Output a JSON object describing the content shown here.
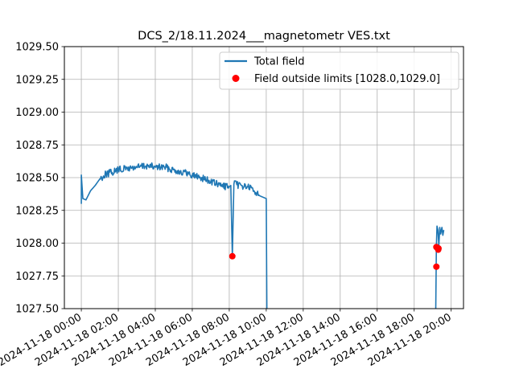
{
  "chart_data": {
    "type": "line",
    "title": "DCS_2/18.11.2024___magnetometr VES.txt",
    "xlabel": "",
    "ylabel": "",
    "xlim": [
      "2024-11-17 23:05",
      "2024-11-18 20:40"
    ],
    "ylim": [
      1027.5,
      1029.5
    ],
    "grid": true,
    "legend_position": "upper-right",
    "x_ticks": [
      "2024-11-18 00:00",
      "2024-11-18 02:00",
      "2024-11-18 04:00",
      "2024-11-18 06:00",
      "2024-11-18 08:00",
      "2024-11-18 10:00",
      "2024-11-18 12:00",
      "2024-11-18 14:00",
      "2024-11-18 16:00",
      "2024-11-18 18:00",
      "2024-11-18 20:00"
    ],
    "y_ticks": [
      "1027.50",
      "1027.75",
      "1028.00",
      "1028.25",
      "1028.50",
      "1028.75",
      "1029.00",
      "1029.25",
      "1029.50"
    ],
    "series": [
      {
        "name": "Total field",
        "color": "#1f77b4",
        "points": [
          [
            "2024-11-18 00:00",
            1028.3
          ],
          [
            "2024-11-18 00:00",
            1028.52
          ],
          [
            "2024-11-18 00:05",
            1028.34
          ],
          [
            "2024-11-18 00:15",
            1028.33
          ],
          [
            "2024-11-18 00:30",
            1028.4
          ],
          [
            "2024-11-18 00:45",
            1028.44
          ],
          [
            "2024-11-18 01:00",
            1028.49
          ],
          [
            "2024-11-18 01:20",
            1028.53
          ],
          [
            "2024-11-18 01:40",
            1028.54
          ],
          [
            "2024-11-18 02:00",
            1028.56
          ],
          [
            "2024-11-18 02:30",
            1028.57
          ],
          [
            "2024-11-18 03:00",
            1028.58
          ],
          [
            "2024-11-18 03:30",
            1028.59
          ],
          [
            "2024-11-18 04:00",
            1028.58
          ],
          [
            "2024-11-18 04:30",
            1028.58
          ],
          [
            "2024-11-18 05:00",
            1028.56
          ],
          [
            "2024-11-18 05:30",
            1028.54
          ],
          [
            "2024-11-18 06:00",
            1028.52
          ],
          [
            "2024-11-18 06:30",
            1028.5
          ],
          [
            "2024-11-18 07:00",
            1028.47
          ],
          [
            "2024-11-18 07:30",
            1028.44
          ],
          [
            "2024-11-18 08:00",
            1028.43
          ],
          [
            "2024-11-18 08:05",
            1028.44
          ],
          [
            "2024-11-18 08:10",
            1027.9
          ],
          [
            "2024-11-18 08:15",
            1028.45
          ],
          [
            "2024-11-18 08:40",
            1028.44
          ],
          [
            "2024-11-18 09:00",
            1028.43
          ],
          [
            "2024-11-18 09:20",
            1028.4
          ],
          [
            "2024-11-18 09:40",
            1028.36
          ],
          [
            "2024-11-18 09:50",
            1028.35
          ],
          [
            "2024-11-18 10:00",
            1028.34
          ],
          [
            "2024-11-18 10:02",
            1027.5
          ],
          [
            "2024-11-18 19:10",
            1027.5
          ],
          [
            "2024-11-18 19:12",
            1027.97
          ],
          [
            "2024-11-18 19:14",
            1028.13
          ],
          [
            "2024-11-18 19:17",
            1028.1
          ],
          [
            "2024-11-18 19:20",
            1027.98
          ],
          [
            "2024-11-18 19:23",
            1028.12
          ],
          [
            "2024-11-18 19:26",
            1028.07
          ],
          [
            "2024-11-18 19:30",
            1028.12
          ],
          [
            "2024-11-18 19:33",
            1028.06
          ],
          [
            "2024-11-18 19:36",
            1028.1
          ]
        ]
      },
      {
        "name": "Field outside limits [1028.0,1029.0]",
        "color": "#ff0000",
        "marker": "circle",
        "points": [
          [
            "2024-11-18 08:10",
            1027.9
          ],
          [
            "2024-11-18 19:12",
            1027.97
          ],
          [
            "2024-11-18 19:12",
            1027.82
          ],
          [
            "2024-11-18 19:18",
            1027.95
          ],
          [
            "2024-11-18 19:19",
            1027.96
          ]
        ]
      }
    ]
  }
}
